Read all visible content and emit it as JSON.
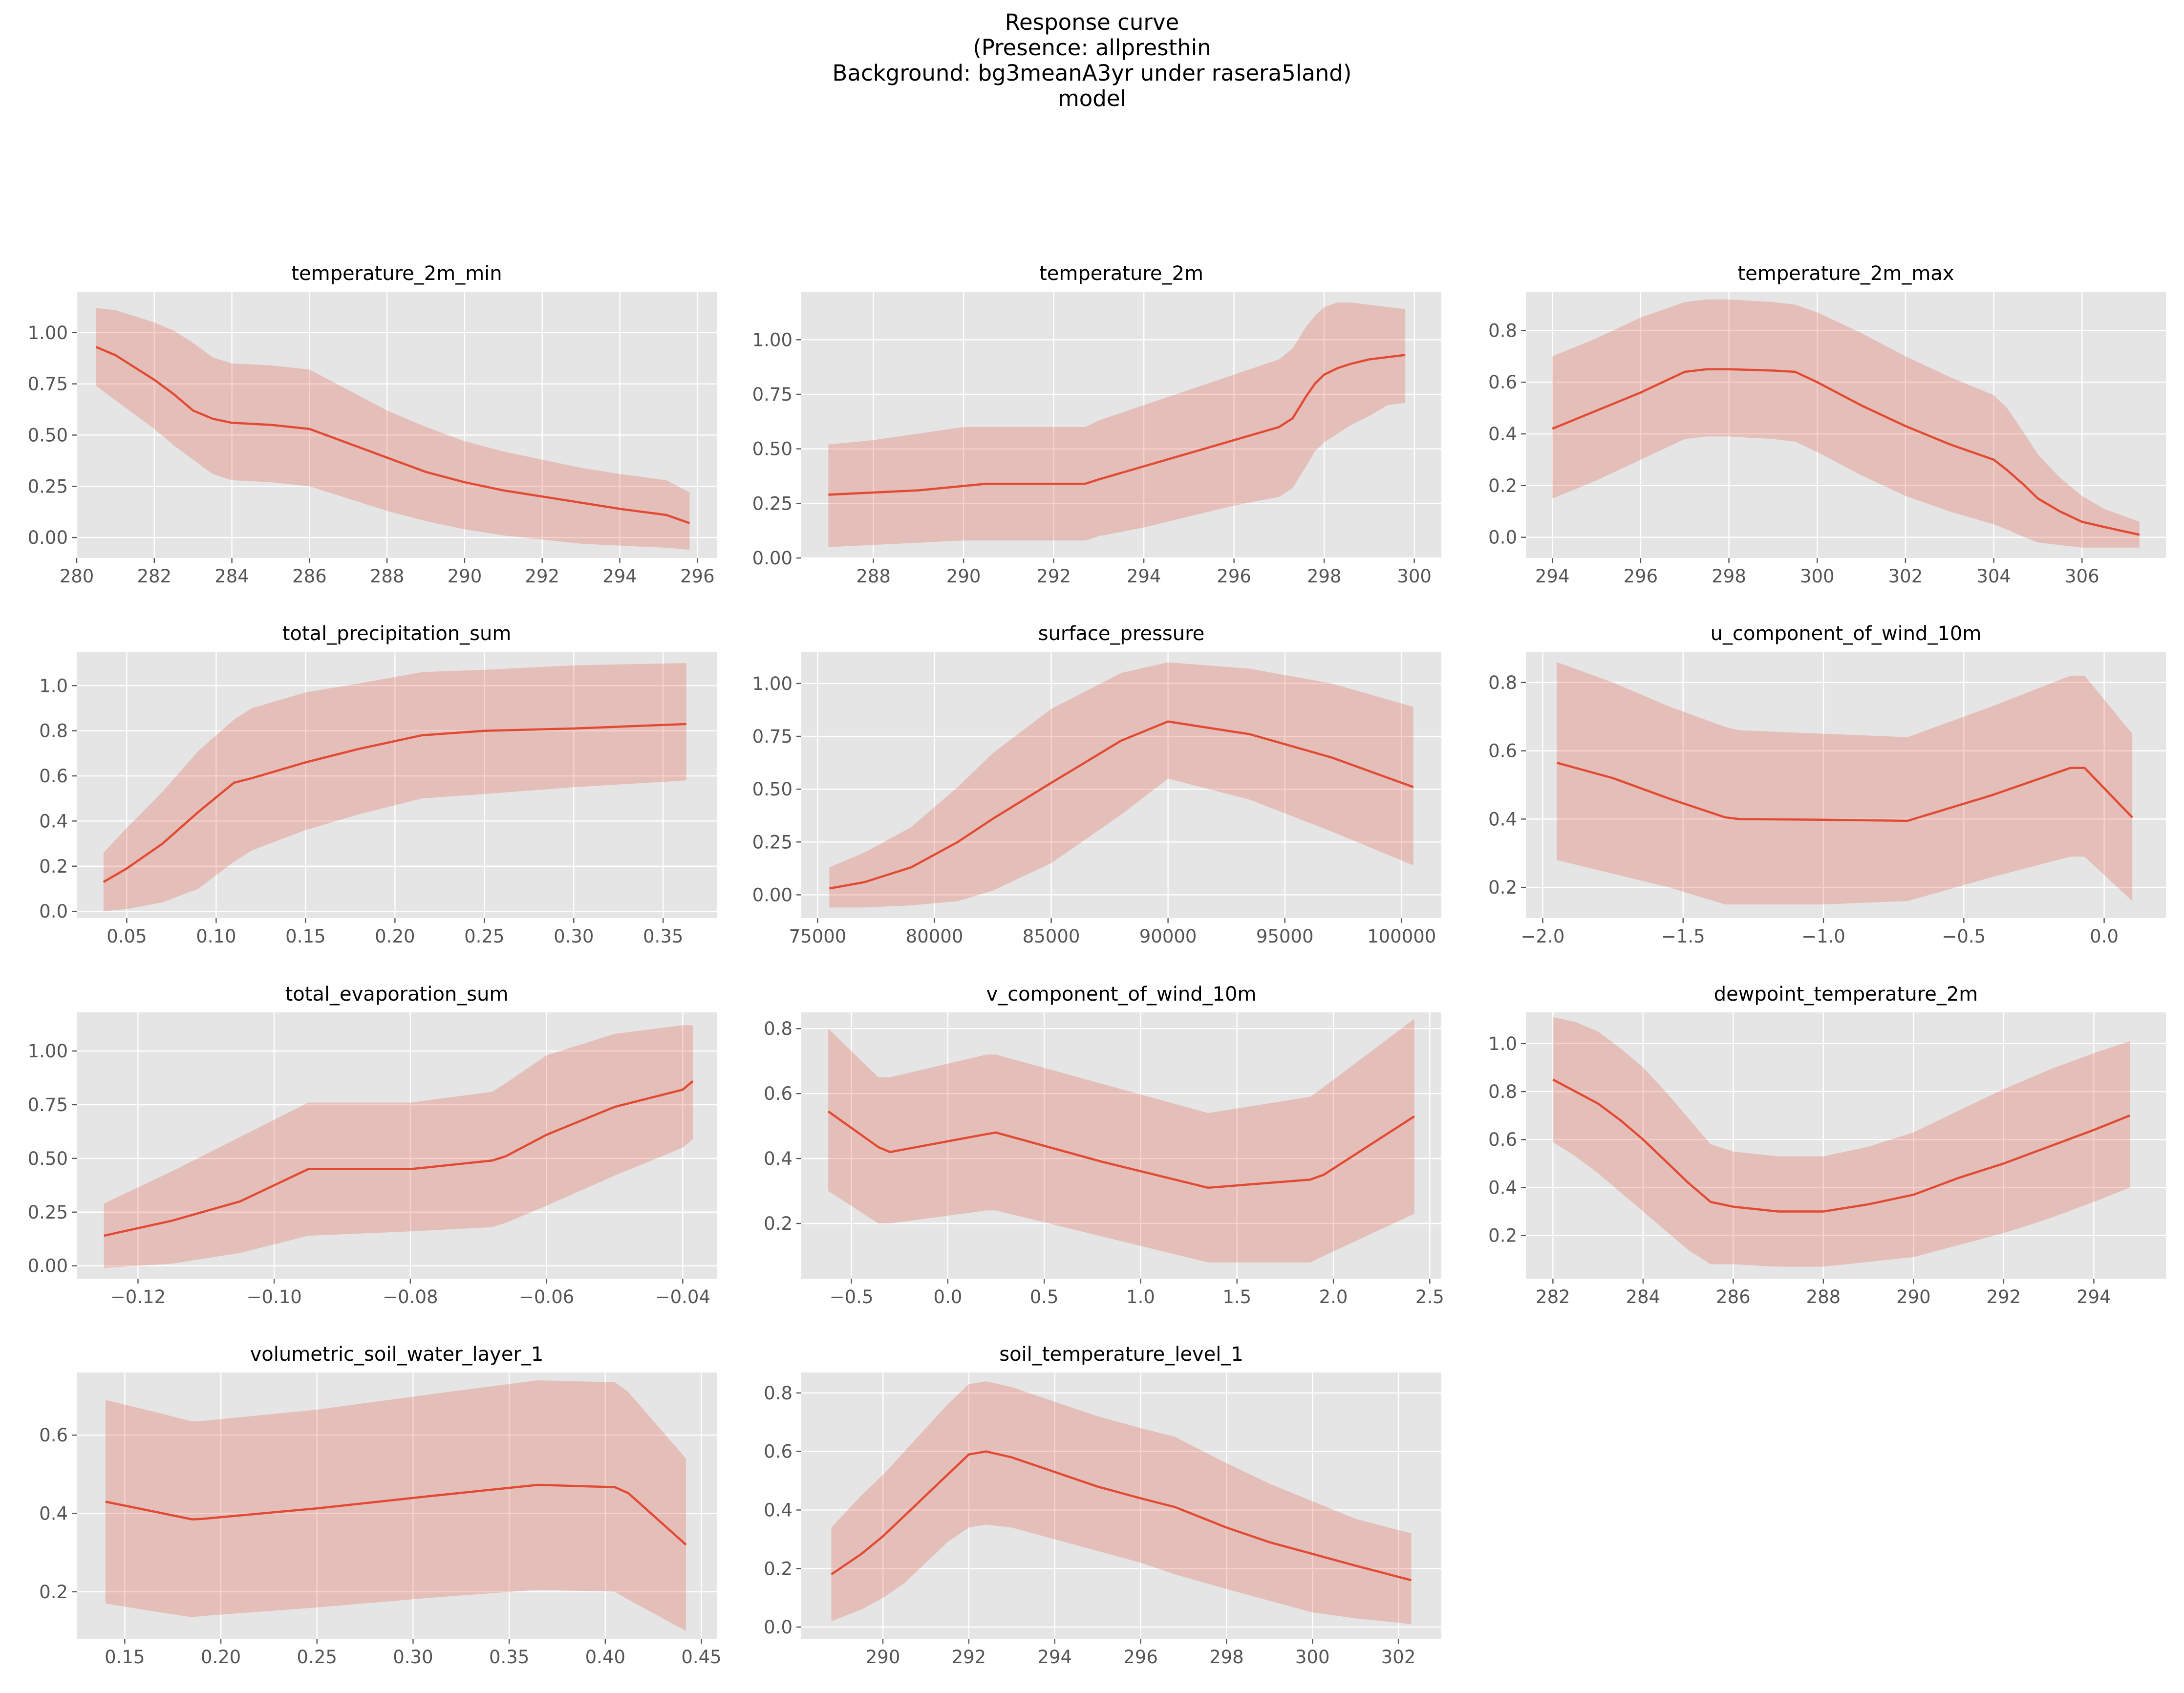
{
  "figure": {
    "title_lines": [
      "Response curve",
      "(Presence: allpresthin",
      "Background: bg3meanA3yr under rasera5land)",
      "model"
    ]
  },
  "colors": {
    "line": "#e24a33",
    "band": "#e24a33",
    "panel_bg": "#e5e5e5",
    "grid": "#ffffff",
    "tick_text": "#555555"
  },
  "chart_data": [
    {
      "type": "line",
      "title": "temperature_2m_min",
      "xlim": [
        280,
        296.5
      ],
      "ylim": [
        -0.1,
        1.2
      ],
      "xticks": [
        280,
        282,
        284,
        286,
        288,
        290,
        292,
        294,
        296
      ],
      "xtick_labels": [
        "280",
        "282",
        "284",
        "286",
        "288",
        "290",
        "292",
        "294",
        "296"
      ],
      "yticks": [
        0,
        0.25,
        0.5,
        0.75,
        1.0
      ],
      "ytick_labels": [
        "0.00",
        "0.25",
        "0.50",
        "0.75",
        "1.00"
      ],
      "x": [
        280.5,
        281,
        281.5,
        282,
        282.5,
        283,
        283.5,
        284,
        285,
        286,
        287,
        288,
        289,
        290,
        291,
        292,
        293,
        294,
        295.2,
        295.8
      ],
      "y": [
        0.93,
        0.89,
        0.83,
        0.77,
        0.7,
        0.62,
        0.58,
        0.56,
        0.55,
        0.53,
        0.46,
        0.39,
        0.32,
        0.27,
        0.23,
        0.2,
        0.17,
        0.14,
        0.11,
        0.07
      ],
      "lower": [
        0.74,
        0.67,
        0.6,
        0.53,
        0.45,
        0.38,
        0.31,
        0.28,
        0.27,
        0.25,
        0.19,
        0.13,
        0.08,
        0.04,
        0.01,
        -0.01,
        -0.03,
        -0.04,
        -0.05,
        -0.06
      ],
      "upper": [
        1.12,
        1.11,
        1.08,
        1.05,
        1.01,
        0.95,
        0.88,
        0.85,
        0.84,
        0.82,
        0.72,
        0.62,
        0.54,
        0.47,
        0.42,
        0.38,
        0.34,
        0.31,
        0.28,
        0.22
      ]
    },
    {
      "type": "line",
      "title": "temperature_2m",
      "xlim": [
        286.4,
        300.6
      ],
      "ylim": [
        0,
        1.22
      ],
      "xticks": [
        288,
        290,
        292,
        294,
        296,
        298,
        300
      ],
      "xtick_labels": [
        "288",
        "290",
        "292",
        "294",
        "296",
        "298",
        "300"
      ],
      "yticks": [
        0,
        0.25,
        0.5,
        0.75,
        1.0
      ],
      "ytick_labels": [
        "0.00",
        "0.25",
        "0.50",
        "0.75",
        "1.00"
      ],
      "x": [
        287,
        288,
        289,
        290,
        290.5,
        291,
        292,
        292.7,
        293,
        294,
        295,
        296,
        297,
        297.3,
        297.6,
        297.8,
        298,
        298.3,
        298.6,
        299,
        299.4,
        299.8
      ],
      "y": [
        0.29,
        0.3,
        0.31,
        0.33,
        0.34,
        0.34,
        0.34,
        0.34,
        0.36,
        0.42,
        0.48,
        0.54,
        0.6,
        0.64,
        0.74,
        0.8,
        0.84,
        0.87,
        0.89,
        0.91,
        0.92,
        0.93
      ],
      "lower": [
        0.05,
        0.06,
        0.07,
        0.08,
        0.08,
        0.08,
        0.08,
        0.08,
        0.1,
        0.14,
        0.19,
        0.24,
        0.28,
        0.32,
        0.42,
        0.49,
        0.53,
        0.57,
        0.61,
        0.65,
        0.7,
        0.71
      ],
      "upper": [
        0.52,
        0.54,
        0.57,
        0.6,
        0.6,
        0.6,
        0.6,
        0.6,
        0.63,
        0.7,
        0.77,
        0.84,
        0.91,
        0.96,
        1.06,
        1.11,
        1.15,
        1.17,
        1.17,
        1.16,
        1.15,
        1.14
      ]
    },
    {
      "type": "line",
      "title": "temperature_2m_max",
      "xlim": [
        293.4,
        307.9
      ],
      "ylim": [
        -0.08,
        0.95
      ],
      "xticks": [
        294,
        296,
        298,
        300,
        302,
        304,
        306
      ],
      "xtick_labels": [
        "294",
        "296",
        "298",
        "300",
        "302",
        "304",
        "306"
      ],
      "yticks": [
        0,
        0.2,
        0.4,
        0.6,
        0.8
      ],
      "ytick_labels": [
        "0.0",
        "0.2",
        "0.4",
        "0.6",
        "0.8"
      ],
      "x": [
        294,
        295,
        296,
        297,
        297.5,
        298,
        299,
        299.5,
        300,
        301,
        302,
        303,
        304,
        304.3,
        304.7,
        305,
        305.5,
        306,
        306.5,
        307.3
      ],
      "y": [
        0.42,
        0.49,
        0.56,
        0.64,
        0.65,
        0.65,
        0.645,
        0.64,
        0.6,
        0.51,
        0.43,
        0.36,
        0.3,
        0.26,
        0.2,
        0.15,
        0.1,
        0.06,
        0.04,
        0.01
      ],
      "lower": [
        0.15,
        0.22,
        0.3,
        0.38,
        0.39,
        0.39,
        0.38,
        0.37,
        0.33,
        0.24,
        0.16,
        0.1,
        0.05,
        0.03,
        0.0,
        -0.02,
        -0.03,
        -0.04,
        -0.04,
        -0.04
      ],
      "upper": [
        0.7,
        0.77,
        0.85,
        0.91,
        0.92,
        0.92,
        0.91,
        0.9,
        0.87,
        0.79,
        0.7,
        0.62,
        0.55,
        0.5,
        0.4,
        0.32,
        0.23,
        0.16,
        0.11,
        0.06
      ]
    },
    {
      "type": "line",
      "title": "total_precipitation_sum",
      "xlim": [
        0.022,
        0.38
      ],
      "ylim": [
        -0.03,
        1.15
      ],
      "xticks": [
        0.05,
        0.1,
        0.15,
        0.2,
        0.25,
        0.3,
        0.35
      ],
      "xtick_labels": [
        "0.05",
        "0.10",
        "0.15",
        "0.20",
        "0.25",
        "0.30",
        "0.35"
      ],
      "yticks": [
        0,
        0.2,
        0.4,
        0.6,
        0.8,
        1.0
      ],
      "ytick_labels": [
        "0.0",
        "0.2",
        "0.4",
        "0.6",
        "0.8",
        "1.0"
      ],
      "x": [
        0.037,
        0.05,
        0.07,
        0.09,
        0.11,
        0.12,
        0.15,
        0.18,
        0.215,
        0.25,
        0.3,
        0.363
      ],
      "y": [
        0.13,
        0.19,
        0.3,
        0.44,
        0.57,
        0.59,
        0.66,
        0.72,
        0.78,
        0.8,
        0.81,
        0.83
      ],
      "lower": [
        0.0,
        0.01,
        0.04,
        0.1,
        0.22,
        0.27,
        0.36,
        0.43,
        0.5,
        0.52,
        0.55,
        0.58
      ],
      "upper": [
        0.26,
        0.37,
        0.53,
        0.71,
        0.85,
        0.9,
        0.97,
        1.01,
        1.06,
        1.07,
        1.09,
        1.1
      ]
    },
    {
      "type": "line",
      "title": "surface_pressure",
      "xlim": [
        74300,
        101700
      ],
      "ylim": [
        -0.11,
        1.15
      ],
      "xticks": [
        75000,
        80000,
        85000,
        90000,
        95000,
        100000
      ],
      "xtick_labels": [
        "75000",
        "80000",
        "85000",
        "90000",
        "95000",
        "100000"
      ],
      "yticks": [
        0,
        0.25,
        0.5,
        0.75,
        1.0
      ],
      "ytick_labels": [
        "0.00",
        "0.25",
        "0.50",
        "0.75",
        "1.00"
      ],
      "x": [
        75500,
        77000,
        79000,
        81000,
        82500,
        85000,
        88000,
        90000,
        93500,
        97000,
        100500
      ],
      "y": [
        0.03,
        0.06,
        0.13,
        0.25,
        0.36,
        0.53,
        0.73,
        0.82,
        0.76,
        0.65,
        0.51
      ],
      "lower": [
        -0.06,
        -0.06,
        -0.05,
        -0.03,
        0.02,
        0.15,
        0.38,
        0.55,
        0.45,
        0.3,
        0.14
      ],
      "upper": [
        0.13,
        0.2,
        0.32,
        0.51,
        0.67,
        0.88,
        1.05,
        1.1,
        1.07,
        1.0,
        0.89
      ]
    },
    {
      "type": "line",
      "title": "u_component_of_wind_10m",
      "xlim": [
        -2.06,
        0.22
      ],
      "ylim": [
        0.11,
        0.89
      ],
      "xticks": [
        -2.0,
        -1.5,
        -1.0,
        -0.5,
        0.0
      ],
      "xtick_labels": [
        "−2.0",
        "−1.5",
        "−1.0",
        "−0.5",
        "0.0"
      ],
      "yticks": [
        0.2,
        0.4,
        0.6,
        0.8
      ],
      "ytick_labels": [
        "0.2",
        "0.4",
        "0.6",
        "0.8"
      ],
      "x": [
        -1.95,
        -1.75,
        -1.55,
        -1.35,
        -1.3,
        -1.0,
        -0.7,
        -0.4,
        -0.12,
        -0.07,
        0.1
      ],
      "y": [
        0.565,
        0.52,
        0.46,
        0.405,
        0.4,
        0.398,
        0.395,
        0.47,
        0.55,
        0.55,
        0.405
      ],
      "lower": [
        0.28,
        0.24,
        0.2,
        0.15,
        0.15,
        0.15,
        0.16,
        0.23,
        0.29,
        0.29,
        0.16
      ],
      "upper": [
        0.86,
        0.8,
        0.73,
        0.67,
        0.66,
        0.65,
        0.64,
        0.73,
        0.82,
        0.82,
        0.65
      ]
    },
    {
      "type": "line",
      "title": "total_evaporation_sum",
      "xlim": [
        -0.129,
        -0.035
      ],
      "ylim": [
        -0.06,
        1.18
      ],
      "xticks": [
        -0.12,
        -0.1,
        -0.08,
        -0.06,
        -0.04
      ],
      "xtick_labels": [
        "−0.12",
        "−0.10",
        "−0.08",
        "−0.06",
        "−0.04"
      ],
      "yticks": [
        0,
        0.25,
        0.5,
        0.75,
        1.0
      ],
      "ytick_labels": [
        "0.00",
        "0.25",
        "0.50",
        "0.75",
        "1.00"
      ],
      "x": [
        -0.125,
        -0.115,
        -0.105,
        -0.095,
        -0.08,
        -0.068,
        -0.066,
        -0.06,
        -0.05,
        -0.04,
        -0.0385
      ],
      "y": [
        0.14,
        0.21,
        0.3,
        0.45,
        0.45,
        0.49,
        0.51,
        0.61,
        0.74,
        0.82,
        0.86
      ],
      "lower": [
        -0.01,
        0.01,
        0.06,
        0.14,
        0.16,
        0.18,
        0.2,
        0.28,
        0.42,
        0.55,
        0.59
      ],
      "upper": [
        0.29,
        0.44,
        0.6,
        0.76,
        0.76,
        0.81,
        0.85,
        0.98,
        1.08,
        1.12,
        1.12
      ]
    },
    {
      "type": "line",
      "title": "v_component_of_wind_10m",
      "xlim": [
        -0.76,
        2.56
      ],
      "ylim": [
        0.03,
        0.85
      ],
      "xticks": [
        -0.5,
        0.0,
        0.5,
        1.0,
        1.5,
        2.0,
        2.5
      ],
      "xtick_labels": [
        "−0.5",
        "0.0",
        "0.5",
        "1.0",
        "1.5",
        "2.0",
        "2.5"
      ],
      "yticks": [
        0.2,
        0.4,
        0.6,
        0.8
      ],
      "ytick_labels": [
        "0.2",
        "0.4",
        "0.6",
        "0.8"
      ],
      "x": [
        -0.62,
        -0.36,
        -0.3,
        0.2,
        0.25,
        0.8,
        1.35,
        1.88,
        1.95,
        2.42
      ],
      "y": [
        0.545,
        0.435,
        0.42,
        0.475,
        0.48,
        0.39,
        0.31,
        0.335,
        0.35,
        0.53
      ],
      "lower": [
        0.3,
        0.2,
        0.2,
        0.24,
        0.24,
        0.16,
        0.08,
        0.08,
        0.1,
        0.23
      ],
      "upper": [
        0.8,
        0.65,
        0.65,
        0.72,
        0.72,
        0.63,
        0.54,
        0.59,
        0.62,
        0.83
      ]
    },
    {
      "type": "line",
      "title": "dewpoint_temperature_2m",
      "xlim": [
        281.4,
        295.6
      ],
      "ylim": [
        0.02,
        1.13
      ],
      "xticks": [
        282,
        284,
        286,
        288,
        290,
        292,
        294
      ],
      "xtick_labels": [
        "282",
        "284",
        "286",
        "288",
        "290",
        "292",
        "294"
      ],
      "yticks": [
        0.2,
        0.4,
        0.6,
        0.8,
        1.0
      ],
      "ytick_labels": [
        "0.2",
        "0.4",
        "0.6",
        "0.8",
        "1.0"
      ],
      "x": [
        282,
        282.5,
        283,
        283.5,
        284,
        284.5,
        285,
        285.5,
        286,
        287,
        288,
        289,
        290,
        291,
        292,
        293,
        294,
        294.8
      ],
      "y": [
        0.85,
        0.8,
        0.75,
        0.68,
        0.6,
        0.51,
        0.42,
        0.34,
        0.32,
        0.3,
        0.3,
        0.33,
        0.37,
        0.44,
        0.5,
        0.57,
        0.64,
        0.7
      ],
      "lower": [
        0.59,
        0.53,
        0.46,
        0.38,
        0.3,
        0.22,
        0.14,
        0.08,
        0.08,
        0.07,
        0.07,
        0.09,
        0.11,
        0.16,
        0.21,
        0.27,
        0.34,
        0.4
      ],
      "upper": [
        1.11,
        1.09,
        1.05,
        0.98,
        0.9,
        0.8,
        0.69,
        0.58,
        0.55,
        0.53,
        0.53,
        0.57,
        0.63,
        0.72,
        0.81,
        0.89,
        0.96,
        1.01
      ]
    },
    {
      "type": "line",
      "title": "volumetric_soil_water_layer_1",
      "xlim": [
        0.125,
        0.458
      ],
      "ylim": [
        0.08,
        0.76
      ],
      "xticks": [
        0.15,
        0.2,
        0.25,
        0.3,
        0.35,
        0.4,
        0.45
      ],
      "xtick_labels": [
        "0.15",
        "0.20",
        "0.25",
        "0.30",
        "0.35",
        "0.40",
        "0.45"
      ],
      "yticks": [
        0.2,
        0.4,
        0.6
      ],
      "ytick_labels": [
        "0.2",
        "0.4",
        "0.6"
      ],
      "x": [
        0.14,
        0.165,
        0.185,
        0.19,
        0.25,
        0.31,
        0.365,
        0.405,
        0.412,
        0.442
      ],
      "y": [
        0.43,
        0.405,
        0.385,
        0.386,
        0.413,
        0.445,
        0.473,
        0.467,
        0.452,
        0.32
      ],
      "lower": [
        0.17,
        0.15,
        0.135,
        0.138,
        0.16,
        0.185,
        0.205,
        0.2,
        0.18,
        0.1
      ],
      "upper": [
        0.69,
        0.66,
        0.635,
        0.636,
        0.665,
        0.705,
        0.74,
        0.735,
        0.71,
        0.54
      ]
    },
    {
      "type": "line",
      "title": "soil_temperature_level_1",
      "xlim": [
        288.1,
        303.0
      ],
      "ylim": [
        -0.04,
        0.87
      ],
      "xticks": [
        290,
        292,
        294,
        296,
        298,
        300,
        302
      ],
      "xtick_labels": [
        "290",
        "292",
        "294",
        "296",
        "298",
        "300",
        "302"
      ],
      "yticks": [
        0,
        0.2,
        0.4,
        0.6,
        0.8
      ],
      "ytick_labels": [
        "0.0",
        "0.2",
        "0.4",
        "0.6",
        "0.8"
      ],
      "x": [
        288.8,
        289.5,
        290,
        290.5,
        291,
        291.5,
        292,
        292.4,
        293,
        294,
        295,
        296,
        296.8,
        298,
        299,
        300,
        301,
        302.3
      ],
      "y": [
        0.18,
        0.25,
        0.31,
        0.38,
        0.45,
        0.52,
        0.59,
        0.6,
        0.58,
        0.53,
        0.48,
        0.44,
        0.41,
        0.34,
        0.29,
        0.25,
        0.21,
        0.16
      ],
      "lower": [
        0.02,
        0.06,
        0.1,
        0.15,
        0.22,
        0.29,
        0.34,
        0.35,
        0.34,
        0.3,
        0.26,
        0.22,
        0.18,
        0.13,
        0.09,
        0.05,
        0.03,
        0.01
      ],
      "upper": [
        0.34,
        0.45,
        0.52,
        0.6,
        0.68,
        0.76,
        0.83,
        0.84,
        0.82,
        0.77,
        0.72,
        0.68,
        0.65,
        0.56,
        0.49,
        0.43,
        0.37,
        0.32
      ]
    }
  ]
}
